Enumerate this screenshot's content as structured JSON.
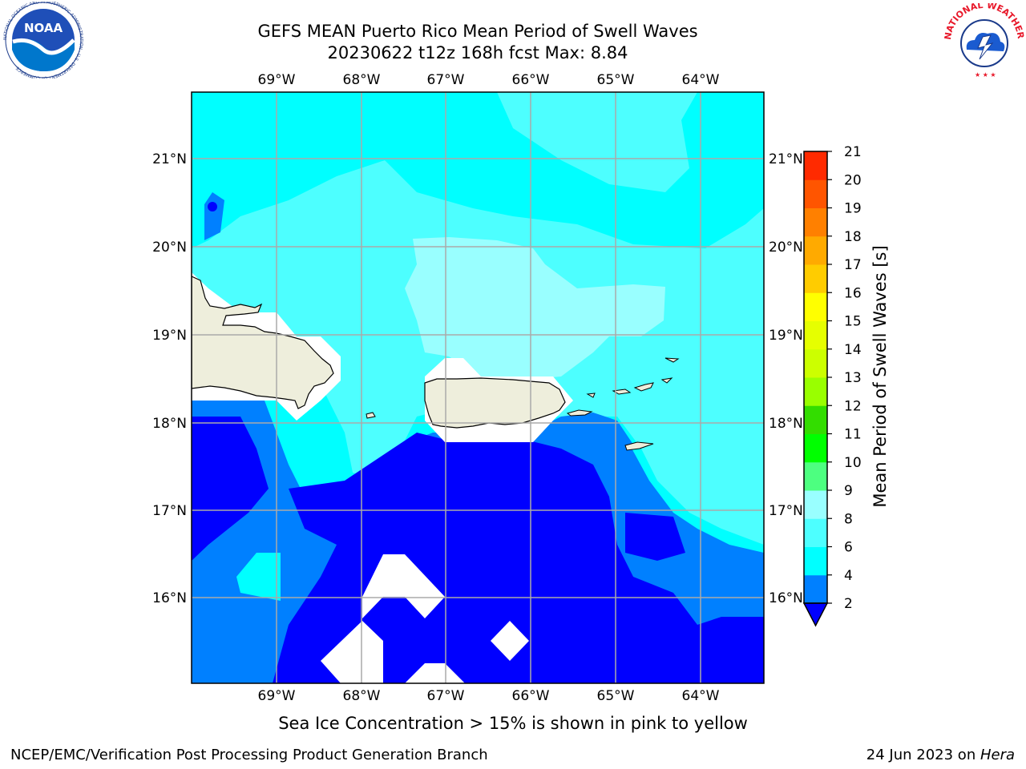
{
  "header": {
    "title_line1": "GEFS MEAN Puerto Rico Mean Period of Swell Waves",
    "title_line2": "20230622 t12z 168h fcst   Max: 8.84"
  },
  "map": {
    "lon_labels": [
      "69°W",
      "68°W",
      "67°W",
      "66°W",
      "65°W",
      "64°W"
    ],
    "lat_labels": [
      "21°N",
      "20°N",
      "19°N",
      "18°N",
      "17°N",
      "16°N"
    ],
    "land_color": "#eeeedc",
    "landmasses": [
      "Hispaniola",
      "Puerto Rico",
      "Virgin Islands",
      "St. Croix"
    ]
  },
  "colorbar": {
    "label": "Mean Period of Swell Waves [s]",
    "ticks": [
      "2",
      "4",
      "6",
      "8",
      "9",
      "10",
      "11",
      "12",
      "13",
      "14",
      "15",
      "16",
      "17",
      "18",
      "19",
      "20",
      "21"
    ],
    "levels": [
      {
        "from": 2,
        "to": 4,
        "color": "#0080ff"
      },
      {
        "from": 4,
        "to": 6,
        "color": "#00ffff"
      },
      {
        "from": 6,
        "to": 8,
        "color": "#4dffff"
      },
      {
        "from": 8,
        "to": 9,
        "color": "#99ffff"
      },
      {
        "from": 9,
        "to": 10,
        "color": "#4dff80"
      },
      {
        "from": 10,
        "to": 11,
        "color": "#00ff00"
      },
      {
        "from": 11,
        "to": 12,
        "color": "#33dd00"
      },
      {
        "from": 12,
        "to": 13,
        "color": "#99ff00"
      },
      {
        "from": 13,
        "to": 14,
        "color": "#ccff00"
      },
      {
        "from": 14,
        "to": 15,
        "color": "#e6ff00"
      },
      {
        "from": 15,
        "to": 16,
        "color": "#ffff00"
      },
      {
        "from": 16,
        "to": 17,
        "color": "#ffcc00"
      },
      {
        "from": 17,
        "to": 18,
        "color": "#ffaa00"
      },
      {
        "from": 18,
        "to": 19,
        "color": "#ff8000"
      },
      {
        "from": 19,
        "to": 20,
        "color": "#ff5500"
      },
      {
        "from": 20,
        "to": 21,
        "color": "#ff2a00"
      }
    ],
    "extend_below_color": "#0000ff"
  },
  "field_colors": {
    "below_2": "#0000ff",
    "c2_4": "#0080ff",
    "c4_6": "#00ffff",
    "c6_8": "#4dffff",
    "c8_9": "#99ffff"
  },
  "notes": {
    "ice": "Sea Ice Concentration > 15% is shown in pink to yellow"
  },
  "footer": {
    "left": "NCEP/EMC/Verification Post Processing Product Generation Branch",
    "right_prefix": "24 Jun 2023 on ",
    "right_machine": "Hera"
  },
  "logos": {
    "noaa": "NOAA",
    "noaa_ring": "NATIONAL OCEANIC AND ATMOSPHERIC ADMINISTRATION · U.S. DEPARTMENT OF COMMERCE",
    "nws": "NATIONAL WEATHER SERVICE"
  }
}
